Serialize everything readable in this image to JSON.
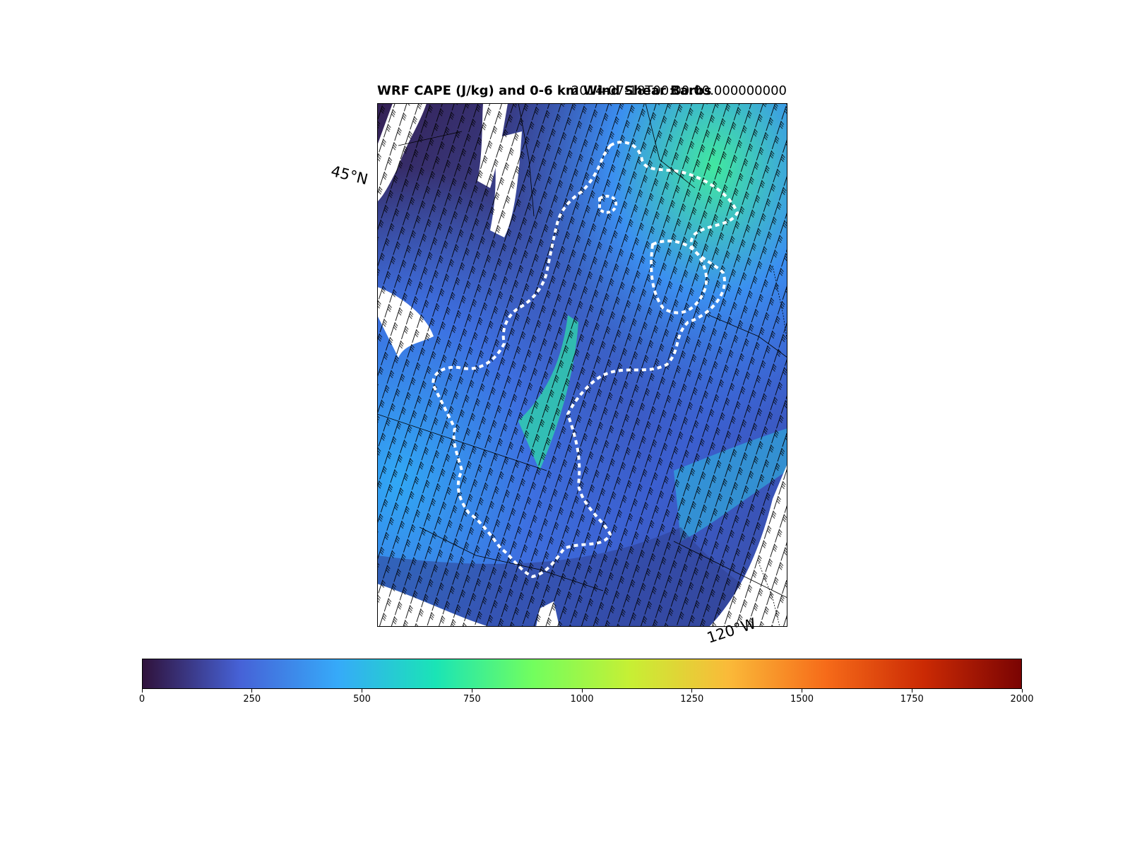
{
  "title": {
    "left": "WRF CAPE (J/kg) and 0-6 km Wind Shear Barbs",
    "right": "2014-07-18T00:00:00.000000000"
  },
  "map": {
    "lat_label": "45°N",
    "lon_label": "120°W",
    "colormap": "turbo",
    "mask_color": "#ffffff",
    "contour_color": "#ffffff",
    "barb_color": "#000000"
  },
  "colorbar": {
    "min": 0,
    "max": 2000,
    "ticks": [
      "0",
      "250",
      "500",
      "750",
      "1000",
      "1250",
      "1500",
      "1750",
      "2000"
    ],
    "stops": [
      "#30123b",
      "#4662d7",
      "#36aaf9",
      "#1ae4b6",
      "#72fe5e",
      "#c7ef34",
      "#faba39",
      "#f66b19",
      "#cb2a04",
      "#7a0403"
    ]
  }
}
